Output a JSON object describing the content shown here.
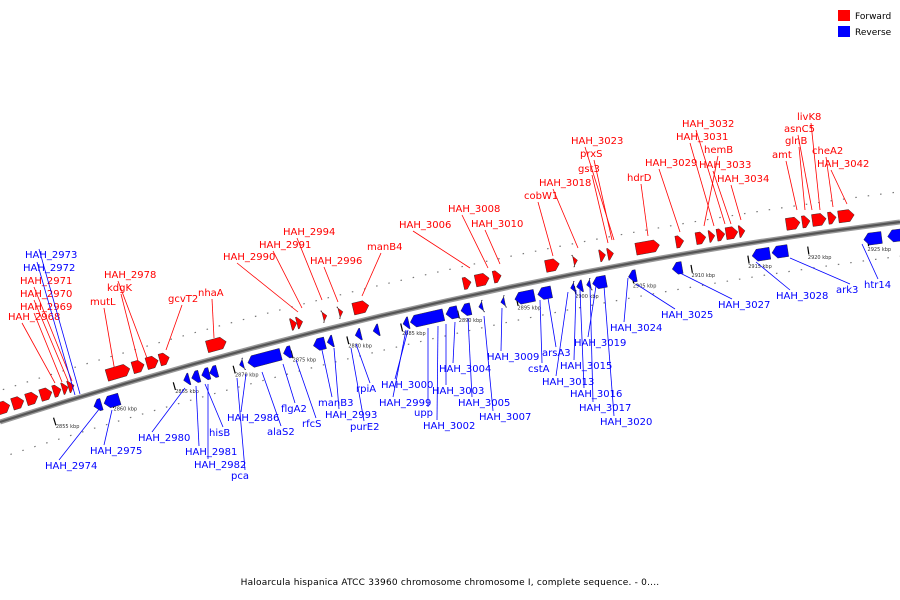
{
  "legend": [
    {
      "label": "Forward",
      "color": "#ff0000"
    },
    {
      "label": "Reverse",
      "color": "#0000ff"
    }
  ],
  "colors": {
    "forward": "#ff0000",
    "reverse": "#0000ff",
    "backbone": "#555555",
    "tick": "#000000"
  },
  "caption": "Haloarcula hispanica ATCC 33960 chromosome chromosome I, complete sequence. - 0....",
  "scale_ticks": [
    "2855 kbp",
    "2860 kbp",
    "2865 kbp",
    "2870 kbp",
    "2875 kbp",
    "2880 kbp",
    "2885 kbp",
    "2890 kbp",
    "2895 kbp",
    "2900 kbp",
    "2905 kbp",
    "2910 kbp",
    "2915 kbp",
    "2920 kbp",
    "2925 kbp"
  ],
  "forward_genes": [
    {
      "label": "HAH_2968"
    },
    {
      "label": "HAH_2969"
    },
    {
      "label": "HAH_2970"
    },
    {
      "label": "HAH_2971"
    },
    {
      "label": "mutL"
    },
    {
      "label": "kdgK"
    },
    {
      "label": "HAH_2978"
    },
    {
      "label": "gcvT2"
    },
    {
      "label": "nhaA"
    },
    {
      "label": "HAH_2990"
    },
    {
      "label": "HAH_2991"
    },
    {
      "label": "HAH_2994"
    },
    {
      "label": "HAH_2996"
    },
    {
      "label": "manB4"
    },
    {
      "label": "HAH_3006"
    },
    {
      "label": "HAH_3008"
    },
    {
      "label": "HAH_3010"
    },
    {
      "label": "cobW1"
    },
    {
      "label": "HAH_3018"
    },
    {
      "label": "gst3"
    },
    {
      "label": "prxS"
    },
    {
      "label": "HAH_3023"
    },
    {
      "label": "hdrD"
    },
    {
      "label": "HAH_3029"
    },
    {
      "label": "hemB"
    },
    {
      "label": "HAH_3031"
    },
    {
      "label": "HAH_3032"
    },
    {
      "label": "HAH_3033"
    },
    {
      "label": "HAH_3034"
    },
    {
      "label": "amt"
    },
    {
      "label": "glnB"
    },
    {
      "label": "asnC5"
    },
    {
      "label": "livK8"
    },
    {
      "label": "cheA2"
    },
    {
      "label": "HAH_3042"
    }
  ],
  "reverse_genes": [
    {
      "label": "HAH_2972"
    },
    {
      "label": "HAH_2973"
    },
    {
      "label": "HAH_2974"
    },
    {
      "label": "HAH_2975"
    },
    {
      "label": "HAH_2980"
    },
    {
      "label": "HAH_2981"
    },
    {
      "label": "hisB"
    },
    {
      "label": "HAH_2982"
    },
    {
      "label": "pca"
    },
    {
      "label": "HAH_2986"
    },
    {
      "label": "alaS2"
    },
    {
      "label": "flgA2"
    },
    {
      "label": "rfcS"
    },
    {
      "label": "manB3"
    },
    {
      "label": "HAH_2993"
    },
    {
      "label": "purE2"
    },
    {
      "label": "rpiA"
    },
    {
      "label": "HAH_3000"
    },
    {
      "label": "HAH_2999"
    },
    {
      "label": "upp"
    },
    {
      "label": "HAH_3002"
    },
    {
      "label": "HAH_3003"
    },
    {
      "label": "HAH_3004"
    },
    {
      "label": "HAH_3005"
    },
    {
      "label": "HAH_3007"
    },
    {
      "label": "HAH_3009"
    },
    {
      "label": "cstA"
    },
    {
      "label": "arsA3"
    },
    {
      "label": "HAH_3013"
    },
    {
      "label": "HAH_3015"
    },
    {
      "label": "HAH_3016"
    },
    {
      "label": "HAH_3017"
    },
    {
      "label": "HAH_3019"
    },
    {
      "label": "HAH_3020"
    },
    {
      "label": "HAH_3024"
    },
    {
      "label": "HAH_3025"
    },
    {
      "label": "HAH_3027"
    },
    {
      "label": "HAH_3028"
    },
    {
      "label": "ark3"
    },
    {
      "label": "htr14"
    }
  ]
}
